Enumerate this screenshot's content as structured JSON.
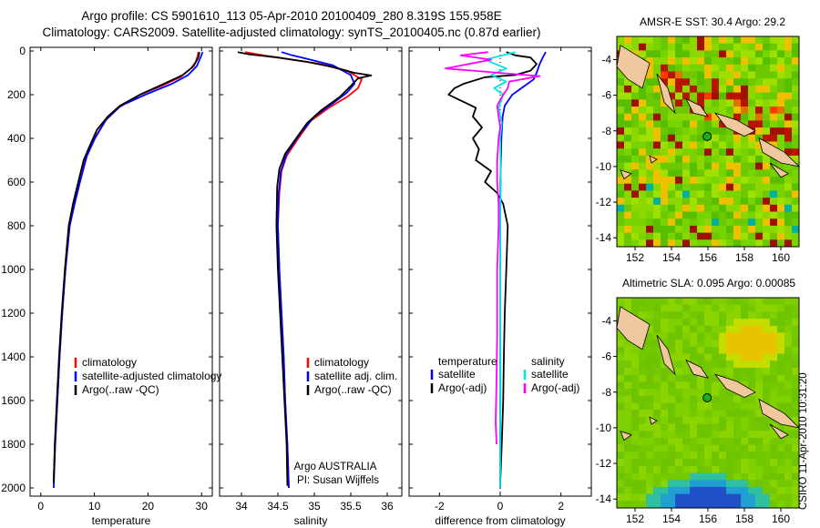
{
  "header": {
    "line1": "Argo profile: CS 5901610_113 05-Apr-2010 20100409_280 8.319S 155.958E",
    "line2": "Climatology: CARS2009. Satellite-adjusted climatology: synTS_20100405.nc (0.87d earlier)"
  },
  "footer": "CSIRO 11-Apr-2010 10:31:20",
  "colors": {
    "clim": "#ff0000",
    "sat": "#0000ff",
    "argo": "#000000",
    "sal_sat": "#00e5e5",
    "sal_argo": "#ff00ff"
  },
  "chart_data": [
    {
      "type": "line",
      "title": "",
      "xlabel": "temperature",
      "ylabel": "",
      "xlim": [
        -2,
        32
      ],
      "ylim": [
        2000,
        0
      ],
      "xticks": [
        0,
        10,
        20,
        30
      ],
      "yticks": [
        0,
        200,
        400,
        600,
        800,
        1000,
        1200,
        1400,
        1600,
        1800,
        2000
      ],
      "legend_labels": [
        "climatology",
        "satellite-adjusted climatology",
        "Argo(..raw -QC)"
      ],
      "series": [
        {
          "name": "climatology",
          "color": "#ff0000",
          "points": [
            [
              29.4,
              5
            ],
            [
              29.3,
              20
            ],
            [
              28.9,
              50
            ],
            [
              28.0,
              80
            ],
            [
              26.0,
              120
            ],
            [
              22.5,
              160
            ],
            [
              18.5,
              200
            ],
            [
              14.5,
              260
            ],
            [
              12.0,
              320
            ],
            [
              10.0,
              400
            ],
            [
              8.5,
              480
            ],
            [
              7.3,
              600
            ],
            [
              6.3,
              700
            ],
            [
              5.4,
              800
            ],
            [
              4.6,
              1000
            ],
            [
              4.0,
              1200
            ],
            [
              3.5,
              1400
            ],
            [
              3.1,
              1600
            ],
            [
              2.7,
              1800
            ],
            [
              2.4,
              1950
            ]
          ]
        },
        {
          "name": "satellite-adjusted climatology",
          "color": "#0000ff",
          "points": [
            [
              30.2,
              5
            ],
            [
              29.8,
              30
            ],
            [
              29.1,
              70
            ],
            [
              27.5,
              110
            ],
            [
              24.5,
              150
            ],
            [
              19.5,
              200
            ],
            [
              15.0,
              250
            ],
            [
              12.3,
              310
            ],
            [
              10.1,
              400
            ],
            [
              8.6,
              480
            ],
            [
              7.3,
              600
            ],
            [
              6.3,
              700
            ],
            [
              5.4,
              800
            ],
            [
              4.6,
              1000
            ],
            [
              4.0,
              1200
            ],
            [
              3.5,
              1400
            ],
            [
              3.1,
              1600
            ],
            [
              2.7,
              1800
            ],
            [
              2.4,
              2000
            ]
          ]
        },
        {
          "name": "Argo(..raw -QC)",
          "color": "#000000",
          "points": [
            [
              29.6,
              5
            ],
            [
              29.4,
              30
            ],
            [
              28.5,
              70
            ],
            [
              26.5,
              110
            ],
            [
              23.0,
              150
            ],
            [
              18.5,
              200
            ],
            [
              14.8,
              250
            ],
            [
              12.5,
              300
            ],
            [
              10.5,
              360
            ],
            [
              9.2,
              430
            ],
            [
              8.0,
              500
            ],
            [
              7.0,
              600
            ],
            [
              6.0,
              700
            ],
            [
              5.2,
              800
            ],
            [
              4.5,
              1000
            ],
            [
              3.9,
              1200
            ],
            [
              3.4,
              1400
            ],
            [
              3.0,
              1600
            ],
            [
              2.6,
              1800
            ],
            [
              2.4,
              1980
            ]
          ]
        }
      ]
    },
    {
      "type": "line",
      "title": "",
      "xlabel": "salinity",
      "ylabel": "",
      "xlim": [
        33.7,
        36.2
      ],
      "ylim": [
        2000,
        0
      ],
      "xticks": [
        34,
        34.5,
        35,
        35.5,
        36
      ],
      "yticks": [
        0,
        200,
        400,
        600,
        800,
        1000,
        1200,
        1400,
        1600,
        1800,
        2000
      ],
      "legend_labels": [
        "climatology",
        "satellite adj. clim.",
        "Argo(..raw -QC)"
      ],
      "annotation": [
        "Argo AUSTRALIA",
        "PI: Susan Wijffels"
      ],
      "series": [
        {
          "name": "climatology",
          "color": "#ff0000",
          "points": [
            [
              34.05,
              5
            ],
            [
              34.3,
              20
            ],
            [
              34.7,
              40
            ],
            [
              35.1,
              60
            ],
            [
              35.45,
              90
            ],
            [
              35.65,
              130
            ],
            [
              35.6,
              170
            ],
            [
              35.45,
              210
            ],
            [
              35.2,
              260
            ],
            [
              34.95,
              320
            ],
            [
              34.78,
              400
            ],
            [
              34.62,
              480
            ],
            [
              34.55,
              550
            ],
            [
              34.52,
              650
            ],
            [
              34.5,
              800
            ],
            [
              34.52,
              1000
            ],
            [
              34.55,
              1200
            ],
            [
              34.58,
              1400
            ],
            [
              34.6,
              1600
            ],
            [
              34.63,
              1800
            ],
            [
              34.65,
              2000
            ]
          ]
        },
        {
          "name": "satellite adj. clim.",
          "color": "#0000ff",
          "points": [
            [
              34.55,
              5
            ],
            [
              34.7,
              20
            ],
            [
              34.95,
              40
            ],
            [
              35.25,
              65
            ],
            [
              35.5,
              110
            ],
            [
              35.55,
              150
            ],
            [
              35.45,
              190
            ],
            [
              35.25,
              240
            ],
            [
              35.0,
              300
            ],
            [
              34.8,
              380
            ],
            [
              34.62,
              470
            ],
            [
              34.54,
              550
            ],
            [
              34.51,
              650
            ],
            [
              34.5,
              800
            ],
            [
              34.52,
              1000
            ],
            [
              34.55,
              1200
            ],
            [
              34.58,
              1400
            ],
            [
              34.6,
              1600
            ],
            [
              34.63,
              1800
            ],
            [
              34.65,
              2000
            ]
          ]
        },
        {
          "name": "Argo(..raw -QC)",
          "color": "#000000",
          "points": [
            [
              33.95,
              5
            ],
            [
              34.1,
              15
            ],
            [
              34.5,
              30
            ],
            [
              34.9,
              50
            ],
            [
              35.2,
              70
            ],
            [
              35.55,
              100
            ],
            [
              35.78,
              112
            ],
            [
              35.6,
              125
            ],
            [
              35.5,
              160
            ],
            [
              35.35,
              210
            ],
            [
              35.1,
              270
            ],
            [
              34.9,
              330
            ],
            [
              34.75,
              400
            ],
            [
              34.6,
              470
            ],
            [
              34.52,
              540
            ],
            [
              34.49,
              620
            ],
            [
              34.48,
              800
            ],
            [
              34.5,
              1000
            ],
            [
              34.53,
              1200
            ],
            [
              34.56,
              1400
            ],
            [
              34.59,
              1600
            ],
            [
              34.62,
              1800
            ],
            [
              34.63,
              1990
            ]
          ]
        }
      ]
    },
    {
      "type": "line",
      "title": "",
      "xlabel": "difference from climatology",
      "ylabel": "",
      "xlim": [
        -3,
        3
      ],
      "ylim": [
        2000,
        0
      ],
      "xticks": [
        -2,
        0,
        2
      ],
      "yticks": [
        0,
        200,
        400,
        600,
        800,
        1000,
        1200,
        1400,
        1600,
        1800,
        2000
      ],
      "legend_labels": {
        "temperature": "temperature",
        "salinity": "salinity",
        "t_sat": "satellite",
        "t_argo": "Argo(-adj)",
        "s_sat": "satellite",
        "s_argo": "Argo(-adj)"
      },
      "series": [
        {
          "name": "temperature satellite",
          "color": "#0000ff",
          "points": [
            [
              1.5,
              5
            ],
            [
              1.4,
              30
            ],
            [
              1.3,
              60
            ],
            [
              1.2,
              100
            ],
            [
              1.1,
              130
            ],
            [
              0.8,
              160
            ],
            [
              0.4,
              200
            ],
            [
              0.15,
              250
            ],
            [
              0.08,
              300
            ],
            [
              0.04,
              400
            ],
            [
              0.01,
              600
            ],
            [
              0,
              800
            ],
            [
              0,
              1200
            ],
            [
              0,
              1600
            ],
            [
              0,
              2000
            ]
          ]
        },
        {
          "name": "temperature Argo(-adj)",
          "color": "#000000",
          "points": [
            [
              0.2,
              5
            ],
            [
              0.5,
              20
            ],
            [
              1.0,
              30
            ],
            [
              1.2,
              60
            ],
            [
              1.0,
              90
            ],
            [
              0.5,
              110
            ],
            [
              -0.5,
              120
            ],
            [
              -1.2,
              150
            ],
            [
              -1.5,
              170
            ],
            [
              -1.7,
              200
            ],
            [
              -1.4,
              220
            ],
            [
              -0.8,
              260
            ],
            [
              -0.9,
              300
            ],
            [
              -0.6,
              350
            ],
            [
              -0.9,
              400
            ],
            [
              -0.7,
              450
            ],
            [
              -0.8,
              500
            ],
            [
              -0.3,
              550
            ],
            [
              -0.5,
              600
            ],
            [
              -0.1,
              650
            ],
            [
              0.1,
              700
            ],
            [
              0.25,
              800
            ],
            [
              0.2,
              1000
            ],
            [
              0.15,
              1200
            ],
            [
              0.12,
              1400
            ],
            [
              0.1,
              1600
            ],
            [
              0.05,
              1800
            ],
            [
              0.0,
              1980
            ]
          ]
        },
        {
          "name": "salinity satellite",
          "color": "#00e5e5",
          "points": [
            [
              0.5,
              5
            ],
            [
              -0.5,
              40
            ],
            [
              0.2,
              80
            ],
            [
              -0.3,
              110
            ],
            [
              0.2,
              140
            ],
            [
              -0.2,
              170
            ],
            [
              0.1,
              200
            ],
            [
              -0.05,
              260
            ],
            [
              0.05,
              330
            ],
            [
              0,
              400
            ],
            [
              0.02,
              600
            ],
            [
              0,
              800
            ],
            [
              0,
              1200
            ],
            [
              0,
              1600
            ],
            [
              0,
              2000
            ]
          ]
        },
        {
          "name": "salinity Argo(-adj)",
          "color": "#ff00ff",
          "points": [
            [
              -0.4,
              5
            ],
            [
              -1.3,
              20
            ],
            [
              -0.3,
              40
            ],
            [
              -1.8,
              80
            ],
            [
              1.3,
              115
            ],
            [
              0.3,
              140
            ],
            [
              0.25,
              170
            ],
            [
              0.1,
              200
            ],
            [
              -0.1,
              250
            ],
            [
              -0.05,
              300
            ],
            [
              0,
              350
            ],
            [
              -0.05,
              400
            ],
            [
              -0.1,
              500
            ],
            [
              -0.1,
              600
            ],
            [
              -0.05,
              700
            ],
            [
              -0.05,
              800
            ],
            [
              -0.1,
              1000
            ],
            [
              -0.1,
              1100
            ],
            [
              -0.1,
              1300
            ],
            [
              -0.12,
              1500
            ],
            [
              -0.15,
              1700
            ],
            [
              -0.12,
              1800
            ]
          ]
        }
      ]
    },
    {
      "type": "heatmap",
      "title": "AMSR-E SST: 30.4 Argo: 29.2",
      "xlabel": "",
      "ylabel": "",
      "xlim": [
        151,
        161
      ],
      "ylim": [
        -14.5,
        -2.7
      ],
      "xticks": [
        152,
        154,
        156,
        158,
        160
      ],
      "yticks": [
        -4,
        -6,
        -8,
        -10,
        -12,
        -14
      ],
      "marker": {
        "lon": 155.958,
        "lat": -8.319
      }
    },
    {
      "type": "heatmap",
      "title": "Altimetric SLA: 0.095 Argo: 0.00085",
      "xlabel": "",
      "ylabel": "",
      "xlim": [
        151,
        161
      ],
      "ylim": [
        -14.5,
        -2.7
      ],
      "xticks": [
        152,
        154,
        156,
        158,
        160
      ],
      "yticks": [
        -4,
        -6,
        -8,
        -10,
        -12,
        -14
      ],
      "marker": {
        "lon": 155.958,
        "lat": -8.319
      }
    }
  ]
}
